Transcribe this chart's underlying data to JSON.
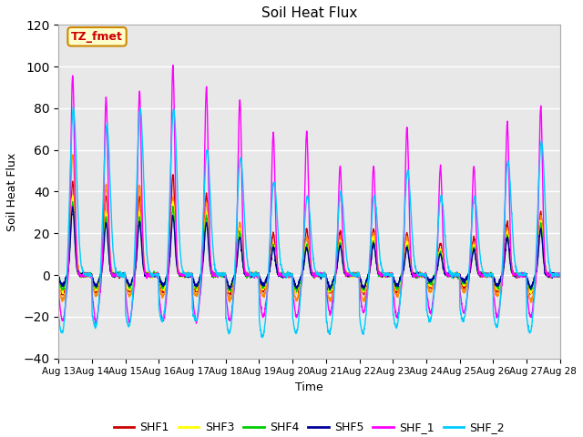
{
  "title": "Soil Heat Flux",
  "xlabel": "Time",
  "ylabel": "Soil Heat Flux",
  "ylim": [
    -40,
    120
  ],
  "yticks": [
    -40,
    -20,
    0,
    20,
    40,
    60,
    80,
    100,
    120
  ],
  "date_labels": [
    "Aug 13",
    "Aug 14",
    "Aug 15",
    "Aug 16",
    "Aug 17",
    "Aug 18",
    "Aug 19",
    "Aug 20",
    "Aug 21",
    "Aug 22",
    "Aug 23",
    "Aug 24",
    "Aug 25",
    "Aug 26",
    "Aug 27",
    "Aug 28"
  ],
  "colors": {
    "SHF1": "#cc0000",
    "SHF2": "#ff8800",
    "SHF3": "#ffff00",
    "SHF4": "#00cc00",
    "SHF5": "#000099",
    "SHF_1": "#ff00ff",
    "SHF_2": "#00ccff"
  },
  "annotation_text": "TZ_fmet",
  "annotation_color": "#cc0000",
  "annotation_bg": "#ffffcc",
  "annotation_border": "#cc8800",
  "background_color": "#e8e8e8",
  "n_days": 15,
  "pts_per_day": 144
}
